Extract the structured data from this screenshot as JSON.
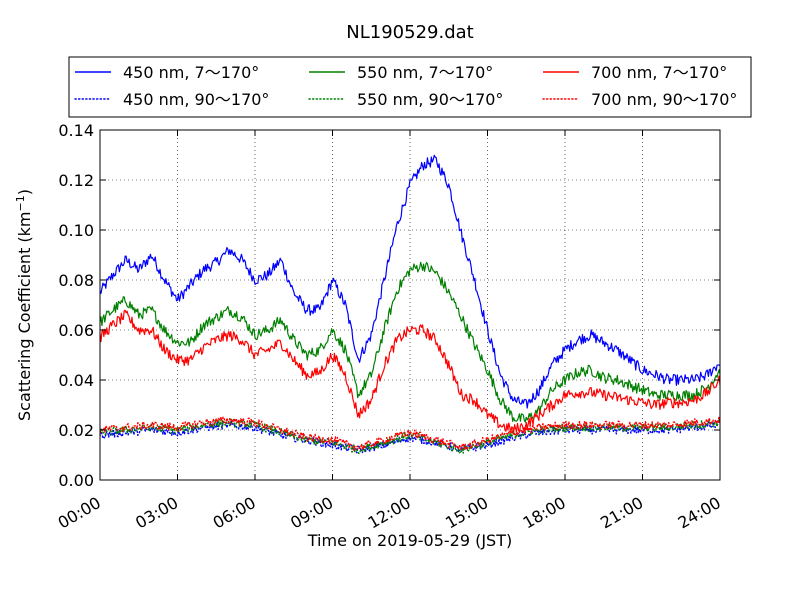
{
  "chart_data": {
    "type": "line",
    "title": "NL190529.dat",
    "xlabel": "Time on 2019-05-29 (JST)",
    "ylabel_main": "Scattering Coefficient (km",
    "ylabel_sup": "−1",
    "ylabel_close": ")",
    "xlim": [
      0,
      24
    ],
    "ylim": [
      0,
      0.14
    ],
    "grid": true,
    "legend_position": "top",
    "xticks": [
      0,
      3,
      6,
      9,
      12,
      15,
      18,
      21,
      24
    ],
    "xticklabels": [
      "00:00",
      "03:00",
      "06:00",
      "09:00",
      "12:00",
      "15:00",
      "18:00",
      "21:00",
      "24:00"
    ],
    "yticks": [
      0.0,
      0.02,
      0.04,
      0.06,
      0.08,
      0.1,
      0.12,
      0.14
    ],
    "yticklabels": [
      "0.00",
      "0.02",
      "0.04",
      "0.06",
      "0.08",
      "0.10",
      "0.12",
      "0.14"
    ],
    "series": [
      {
        "name": "450 nm, 7～170°",
        "color": "#0000ff",
        "style": "solid",
        "x": [
          0,
          0.5,
          1,
          1.5,
          2,
          2.5,
          3,
          3.5,
          4,
          4.5,
          5,
          5.5,
          6,
          6.5,
          7,
          7.5,
          8,
          8.5,
          9,
          9.5,
          10,
          10.5,
          11,
          11.5,
          12,
          12.5,
          13,
          13.5,
          14,
          14.5,
          15,
          15.5,
          16,
          16.5,
          17,
          17.5,
          18,
          18.5,
          19,
          19.5,
          20,
          20.5,
          21,
          21.5,
          22,
          22.5,
          23,
          23.5,
          24
        ],
        "y": [
          0.075,
          0.082,
          0.088,
          0.084,
          0.09,
          0.08,
          0.072,
          0.078,
          0.084,
          0.087,
          0.092,
          0.088,
          0.08,
          0.082,
          0.088,
          0.075,
          0.068,
          0.068,
          0.08,
          0.07,
          0.048,
          0.058,
          0.08,
          0.102,
          0.118,
          0.126,
          0.128,
          0.118,
          0.098,
          0.08,
          0.06,
          0.042,
          0.032,
          0.03,
          0.036,
          0.046,
          0.052,
          0.056,
          0.058,
          0.055,
          0.052,
          0.048,
          0.044,
          0.042,
          0.04,
          0.04,
          0.04,
          0.042,
          0.047
        ]
      },
      {
        "name": "550 nm, 7～170°",
        "color": "#008000",
        "style": "solid",
        "x": [
          0,
          0.5,
          1,
          1.5,
          2,
          2.5,
          3,
          3.5,
          4,
          4.5,
          5,
          5.5,
          6,
          6.5,
          7,
          7.5,
          8,
          8.5,
          9,
          9.5,
          10,
          10.5,
          11,
          11.5,
          12,
          12.5,
          13,
          13.5,
          14,
          14.5,
          15,
          15.5,
          16,
          16.5,
          17,
          17.5,
          18,
          18.5,
          19,
          19.5,
          20,
          20.5,
          21,
          21.5,
          22,
          22.5,
          23,
          23.5,
          24
        ],
        "y": [
          0.063,
          0.068,
          0.072,
          0.066,
          0.068,
          0.06,
          0.055,
          0.055,
          0.062,
          0.065,
          0.068,
          0.065,
          0.058,
          0.06,
          0.064,
          0.056,
          0.05,
          0.052,
          0.06,
          0.052,
          0.034,
          0.042,
          0.06,
          0.076,
          0.084,
          0.086,
          0.083,
          0.075,
          0.065,
          0.054,
          0.044,
          0.032,
          0.025,
          0.024,
          0.028,
          0.036,
          0.04,
          0.043,
          0.044,
          0.041,
          0.04,
          0.038,
          0.036,
          0.034,
          0.034,
          0.034,
          0.034,
          0.037,
          0.044
        ]
      },
      {
        "name": "700 nm, 7～170°",
        "color": "#ff0000",
        "style": "solid",
        "x": [
          0,
          0.5,
          1,
          1.5,
          2,
          2.5,
          3,
          3.5,
          4,
          4.5,
          5,
          5.5,
          6,
          6.5,
          7,
          7.5,
          8,
          8.5,
          9,
          9.5,
          10,
          10.5,
          11,
          11.5,
          12,
          12.5,
          13,
          13.5,
          14,
          14.5,
          15,
          15.5,
          16,
          16.5,
          17,
          17.5,
          18,
          18.5,
          19,
          19.5,
          20,
          20.5,
          21,
          21.5,
          22,
          22.5,
          23,
          23.5,
          24
        ],
        "y": [
          0.057,
          0.062,
          0.066,
          0.06,
          0.06,
          0.052,
          0.048,
          0.048,
          0.053,
          0.056,
          0.058,
          0.056,
          0.05,
          0.052,
          0.055,
          0.048,
          0.042,
          0.043,
          0.05,
          0.042,
          0.026,
          0.032,
          0.046,
          0.056,
          0.06,
          0.06,
          0.056,
          0.046,
          0.034,
          0.032,
          0.026,
          0.022,
          0.02,
          0.022,
          0.026,
          0.03,
          0.034,
          0.035,
          0.035,
          0.034,
          0.033,
          0.032,
          0.031,
          0.03,
          0.031,
          0.031,
          0.032,
          0.035,
          0.04
        ]
      },
      {
        "name": "450 nm, 90～170°",
        "color": "#0000ff",
        "style": "dotted",
        "x": [
          0,
          1,
          2,
          3,
          4,
          5,
          6,
          7,
          8,
          9,
          10,
          11,
          12,
          13,
          14,
          15,
          16,
          17,
          18,
          19,
          20,
          21,
          22,
          23,
          24
        ],
        "y": [
          0.018,
          0.019,
          0.02,
          0.019,
          0.021,
          0.022,
          0.021,
          0.018,
          0.016,
          0.014,
          0.012,
          0.014,
          0.017,
          0.015,
          0.012,
          0.014,
          0.017,
          0.019,
          0.02,
          0.02,
          0.02,
          0.02,
          0.02,
          0.021,
          0.022
        ]
      },
      {
        "name": "550 nm, 90～170°",
        "color": "#008000",
        "style": "dotted",
        "x": [
          0,
          1,
          2,
          3,
          4,
          5,
          6,
          7,
          8,
          9,
          10,
          11,
          12,
          13,
          14,
          15,
          16,
          17,
          18,
          19,
          20,
          21,
          22,
          23,
          24
        ],
        "y": [
          0.019,
          0.02,
          0.021,
          0.02,
          0.022,
          0.023,
          0.022,
          0.019,
          0.016,
          0.015,
          0.012,
          0.015,
          0.018,
          0.015,
          0.012,
          0.015,
          0.018,
          0.02,
          0.021,
          0.021,
          0.021,
          0.021,
          0.021,
          0.022,
          0.023
        ]
      },
      {
        "name": "700 nm, 90～170°",
        "color": "#ff0000",
        "style": "dotted",
        "x": [
          0,
          1,
          2,
          3,
          4,
          5,
          6,
          7,
          8,
          9,
          10,
          11,
          12,
          13,
          14,
          15,
          16,
          17,
          18,
          19,
          20,
          21,
          22,
          23,
          24
        ],
        "y": [
          0.02,
          0.021,
          0.022,
          0.021,
          0.023,
          0.024,
          0.023,
          0.02,
          0.017,
          0.016,
          0.013,
          0.016,
          0.019,
          0.016,
          0.013,
          0.016,
          0.019,
          0.021,
          0.022,
          0.022,
          0.022,
          0.022,
          0.022,
          0.023,
          0.024
        ]
      }
    ],
    "legend_order": [
      0,
      1,
      2,
      3,
      4,
      5
    ]
  }
}
